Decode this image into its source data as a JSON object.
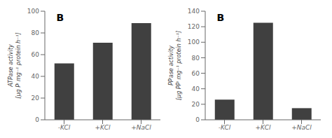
{
  "chart_data": [
    {
      "type": "bar",
      "categories": [
        "-KCl",
        "+KCl",
        "+NaCl"
      ],
      "values": [
        52,
        71,
        89
      ],
      "ylabel": "ATPase activity\n[µg Pᴵ mg⁻¹ protein h⁻¹]",
      "annotation": "B",
      "ylim": [
        0,
        100
      ],
      "yticks": [
        0,
        20,
        40,
        60,
        80,
        100
      ],
      "color": "#404040"
    },
    {
      "type": "bar",
      "categories": [
        "-KCl",
        "+KCl",
        "+NaCl"
      ],
      "values": [
        26,
        125,
        15
      ],
      "ylabel": "PPᴵase activity\n[µg PPᴵ mg⁻¹ protein h⁻¹]",
      "annotation": "B",
      "ylim": [
        0,
        140
      ],
      "yticks": [
        0,
        20,
        40,
        60,
        80,
        100,
        120,
        140
      ],
      "color": "#404040"
    }
  ]
}
